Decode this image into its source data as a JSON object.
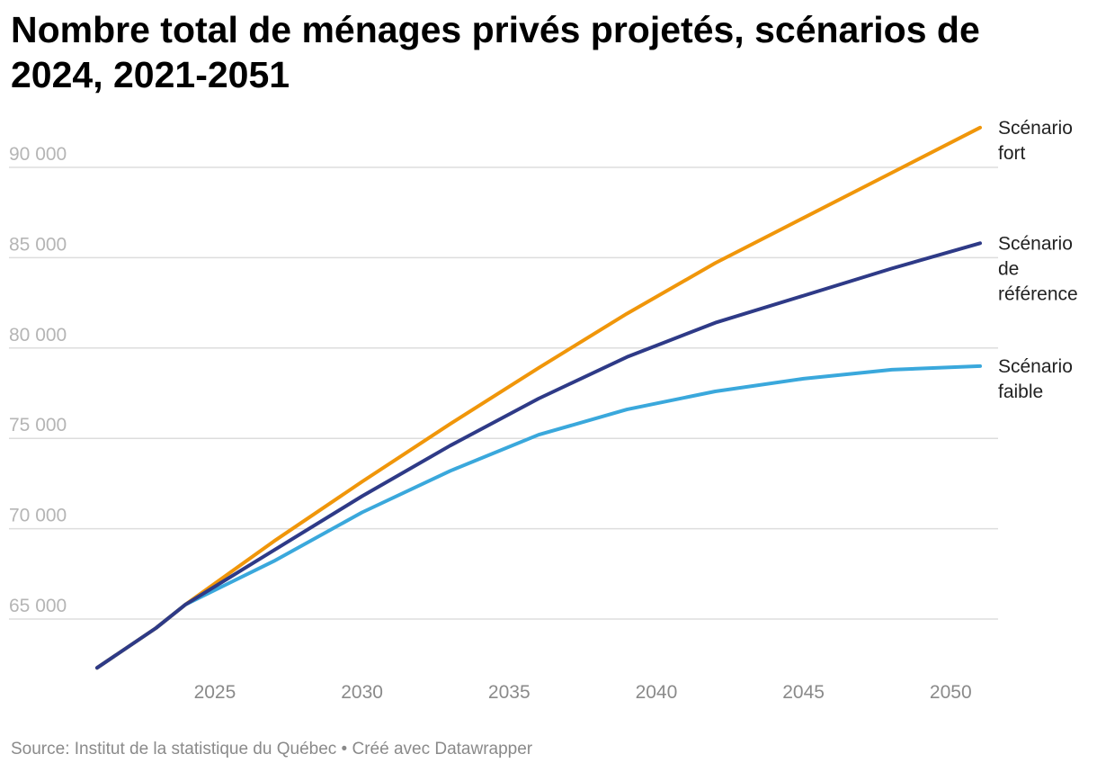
{
  "title": "Nombre total de ménages privés projetés, scénarios de 2024, 2021-2051",
  "source": "Source: Institut de la statistique du Québec • Créé avec Datawrapper",
  "colors": {
    "fort": "#f0960a",
    "reference": "#2e3a87",
    "faible": "#3aa8dc",
    "grid": "#dddddd"
  },
  "chart_data": {
    "type": "line",
    "title": "Nombre total de ménages privés projetés, scénarios de 2024, 2021-2051",
    "xlim": [
      2021,
      2051
    ],
    "ylim": [
      62500,
      92000
    ],
    "x_ticks": [
      2025,
      2030,
      2035,
      2040,
      2045,
      2050
    ],
    "x_tick_labels": [
      "2025",
      "2030",
      "2035",
      "2040",
      "2045",
      "2050"
    ],
    "y_ticks": [
      65000,
      70000,
      75000,
      80000,
      85000,
      90000
    ],
    "y_tick_labels": [
      "65 000",
      "70 000",
      "75 000",
      "80 000",
      "85 000",
      "90 000"
    ],
    "grid": true,
    "legend": "direct labels at line ends (right)",
    "x": [
      2021,
      2023,
      2024,
      2027,
      2030,
      2033,
      2036,
      2039,
      2042,
      2045,
      2048,
      2051
    ],
    "series": [
      {
        "key": "fort",
        "name": "Scénario fort",
        "label_lines": [
          "Scénario",
          "fort"
        ],
        "values": [
          62300,
          64500,
          65800,
          69300,
          72600,
          75800,
          78900,
          81900,
          84700,
          87200,
          89700,
          92200
        ]
      },
      {
        "key": "reference",
        "name": "Scénario de référence",
        "label_lines": [
          "Scénario",
          "de",
          "référence"
        ],
        "values": [
          62300,
          64500,
          65800,
          68800,
          71800,
          74600,
          77200,
          79500,
          81400,
          82900,
          84400,
          85800
        ]
      },
      {
        "key": "faible",
        "name": "Scénario faible",
        "label_lines": [
          "Scénario",
          "faible"
        ],
        "values": [
          62300,
          64500,
          65800,
          68200,
          70900,
          73200,
          75200,
          76600,
          77600,
          78300,
          78800,
          79000
        ]
      }
    ]
  }
}
